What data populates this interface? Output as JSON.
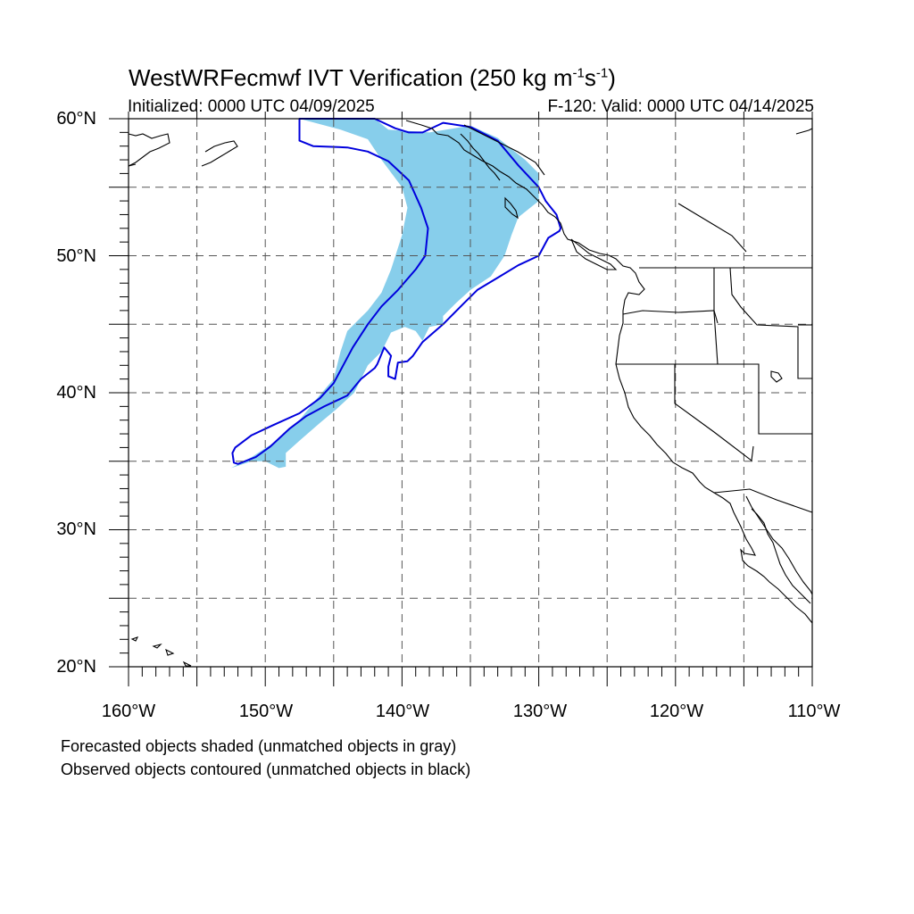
{
  "title": {
    "main": "WestWRFecmwf IVT Verification (250 kg m",
    "sup1": "-1",
    "mid": "s",
    "sup2": "-1",
    "end": ")"
  },
  "initialized": "Initialized: 0000 UTC 04/09/2025",
  "valid": "F-120: Valid: 0000 UTC 04/14/2025",
  "lat_labels": [
    "60°N",
    "50°N",
    "40°N",
    "30°N",
    "20°N"
  ],
  "lon_labels": [
    "160°W",
    "150°W",
    "140°W",
    "130°W",
    "120°W",
    "110°W"
  ],
  "notes": [
    "Forecasted objects shaded (unmatched objects in gray)",
    "Observed objects contoured (unmatched objects in black)"
  ],
  "map": {
    "lon_range": [
      -160,
      -110
    ],
    "lat_range": [
      20,
      60
    ],
    "grid_step_deg": 5,
    "forecast_fill_color": "#87ceeb",
    "observed_contour_color": "#0000dd",
    "coast_color": "#000000"
  },
  "chart_data": {
    "type": "map",
    "forecast_object": {
      "matched": true,
      "lonlat": [
        [
          -147.5,
          60
        ],
        [
          -142,
          60
        ],
        [
          -141,
          59.2
        ],
        [
          -138,
          59
        ],
        [
          -135,
          59.5
        ],
        [
          -133,
          58.6
        ],
        [
          -131,
          57
        ],
        [
          -130,
          56
        ],
        [
          -130,
          54
        ],
        [
          -131.5,
          52.8
        ],
        [
          -132,
          51.5
        ],
        [
          -132.5,
          50
        ],
        [
          -133.5,
          48.5
        ],
        [
          -135,
          47.5
        ],
        [
          -136,
          46.6
        ],
        [
          -137,
          45.6
        ],
        [
          -137,
          45
        ],
        [
          -138,
          44.8
        ],
        [
          -138.5,
          43.8
        ],
        [
          -139,
          44.5
        ],
        [
          -139.8,
          44.8
        ],
        [
          -140.8,
          44.4
        ],
        [
          -141.5,
          43
        ],
        [
          -142.5,
          42
        ],
        [
          -143.5,
          40
        ],
        [
          -144.8,
          38.8
        ],
        [
          -146,
          37.8
        ],
        [
          -147.5,
          36.5
        ],
        [
          -148.5,
          35.6
        ],
        [
          -148.5,
          34.6
        ],
        [
          -149,
          34.5
        ],
        [
          -150,
          35
        ],
        [
          -151,
          35
        ],
        [
          -152.5,
          34.5
        ],
        [
          -151,
          35.3
        ],
        [
          -149,
          36.6
        ],
        [
          -147.5,
          38
        ],
        [
          -146.2,
          39.6
        ],
        [
          -145,
          41
        ],
        [
          -144.5,
          43
        ],
        [
          -144,
          44.5
        ],
        [
          -142.5,
          46
        ],
        [
          -141.5,
          47.3
        ],
        [
          -140.8,
          49
        ],
        [
          -140,
          51.5
        ],
        [
          -139.6,
          53.5
        ],
        [
          -140,
          55
        ],
        [
          -141.5,
          57
        ],
        [
          -142.5,
          58.5
        ],
        [
          -144.5,
          59.2
        ],
        [
          -147.5,
          60
        ]
      ]
    },
    "observed_object": {
      "matched": true,
      "lonlat": [
        [
          -139.5,
          59
        ],
        [
          -138.5,
          59
        ],
        [
          -137,
          59.7
        ],
        [
          -135,
          59.4
        ],
        [
          -133,
          58.4
        ],
        [
          -131.5,
          56.6
        ],
        [
          -130,
          55
        ],
        [
          -129.5,
          54
        ],
        [
          -128.7,
          53
        ],
        [
          -128.4,
          52
        ],
        [
          -128.5,
          51.8
        ],
        [
          -129.3,
          51.3
        ],
        [
          -130,
          50
        ],
        [
          -131.5,
          49.3
        ],
        [
          -133,
          48.4
        ],
        [
          -134.5,
          47.5
        ],
        [
          -135.5,
          46.5
        ],
        [
          -136.5,
          45.5
        ],
        [
          -137,
          45
        ],
        [
          -138.5,
          43.7
        ],
        [
          -139.2,
          42.7
        ],
        [
          -139.6,
          42.3
        ],
        [
          -140.3,
          42.2
        ],
        [
          -140.5,
          41
        ],
        [
          -141,
          41.2
        ],
        [
          -141,
          41.9
        ],
        [
          -140.8,
          42.7
        ],
        [
          -141.3,
          43.3
        ],
        [
          -141.8,
          42.1
        ],
        [
          -142,
          41.8
        ],
        [
          -143,
          41
        ],
        [
          -144,
          39.8
        ],
        [
          -145.7,
          39
        ],
        [
          -147,
          38.3
        ],
        [
          -148.2,
          37.4
        ],
        [
          -149.6,
          36.1
        ],
        [
          -150.7,
          35.3
        ],
        [
          -152,
          34.8
        ],
        [
          -152.3,
          34.9
        ],
        [
          -152.4,
          35.6
        ],
        [
          -152.2,
          36
        ],
        [
          -151,
          36.9
        ],
        [
          -149.5,
          37.6
        ],
        [
          -147.5,
          38.5
        ],
        [
          -146,
          39.6
        ],
        [
          -145,
          40.7
        ],
        [
          -144.3,
          42
        ],
        [
          -143.6,
          43.3
        ],
        [
          -142.5,
          45
        ],
        [
          -141.5,
          46.3
        ],
        [
          -140.3,
          47.5
        ],
        [
          -139,
          49
        ],
        [
          -138.3,
          50
        ],
        [
          -138.1,
          52
        ],
        [
          -138.6,
          53.5
        ],
        [
          -139.5,
          55.5
        ],
        [
          -141,
          56.9
        ],
        [
          -142.5,
          57.6
        ],
        [
          -144,
          57.9
        ],
        [
          -146.5,
          58
        ],
        [
          -147.5,
          58.4
        ],
        [
          -147.5,
          60
        ],
        [
          -142,
          60
        ],
        [
          -140.5,
          59.3
        ],
        [
          -139.5,
          59
        ]
      ]
    }
  }
}
